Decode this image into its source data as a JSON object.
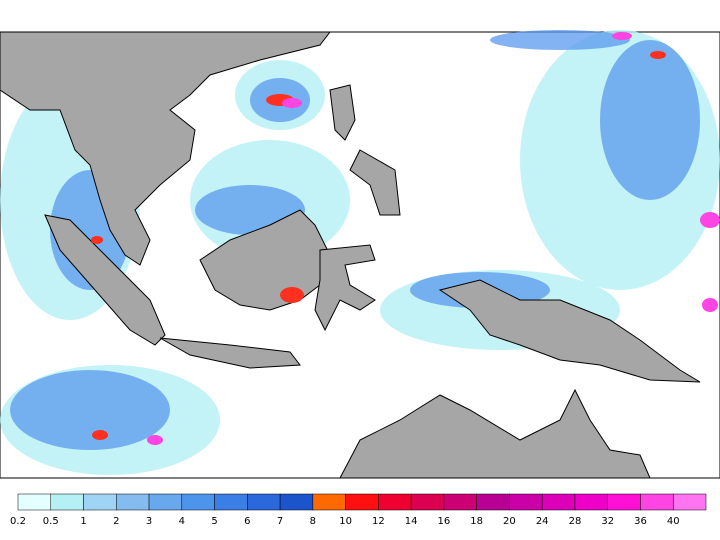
{
  "legend": {
    "labels": [
      0.2,
      0.5,
      1,
      2,
      3,
      4,
      5,
      6,
      7,
      8,
      10,
      12,
      14,
      16,
      18,
      20,
      24,
      28,
      32,
      36,
      40
    ],
    "colors": [
      "#e4ffff",
      "#b4f0f4",
      "#a0d4f4",
      "#84bcf0",
      "#68a8ec",
      "#4c94ec",
      "#3a7ee6",
      "#2a68dc",
      "#1c54cc",
      "#ff6a00",
      "#ff1010",
      "#ee0030",
      "#dc0050",
      "#cc0074",
      "#b80094",
      "#cc00a8",
      "#dc00b8",
      "#ee00c8",
      "#ff10d4",
      "#ff44e4",
      "#ff74f0"
    ]
  }
}
